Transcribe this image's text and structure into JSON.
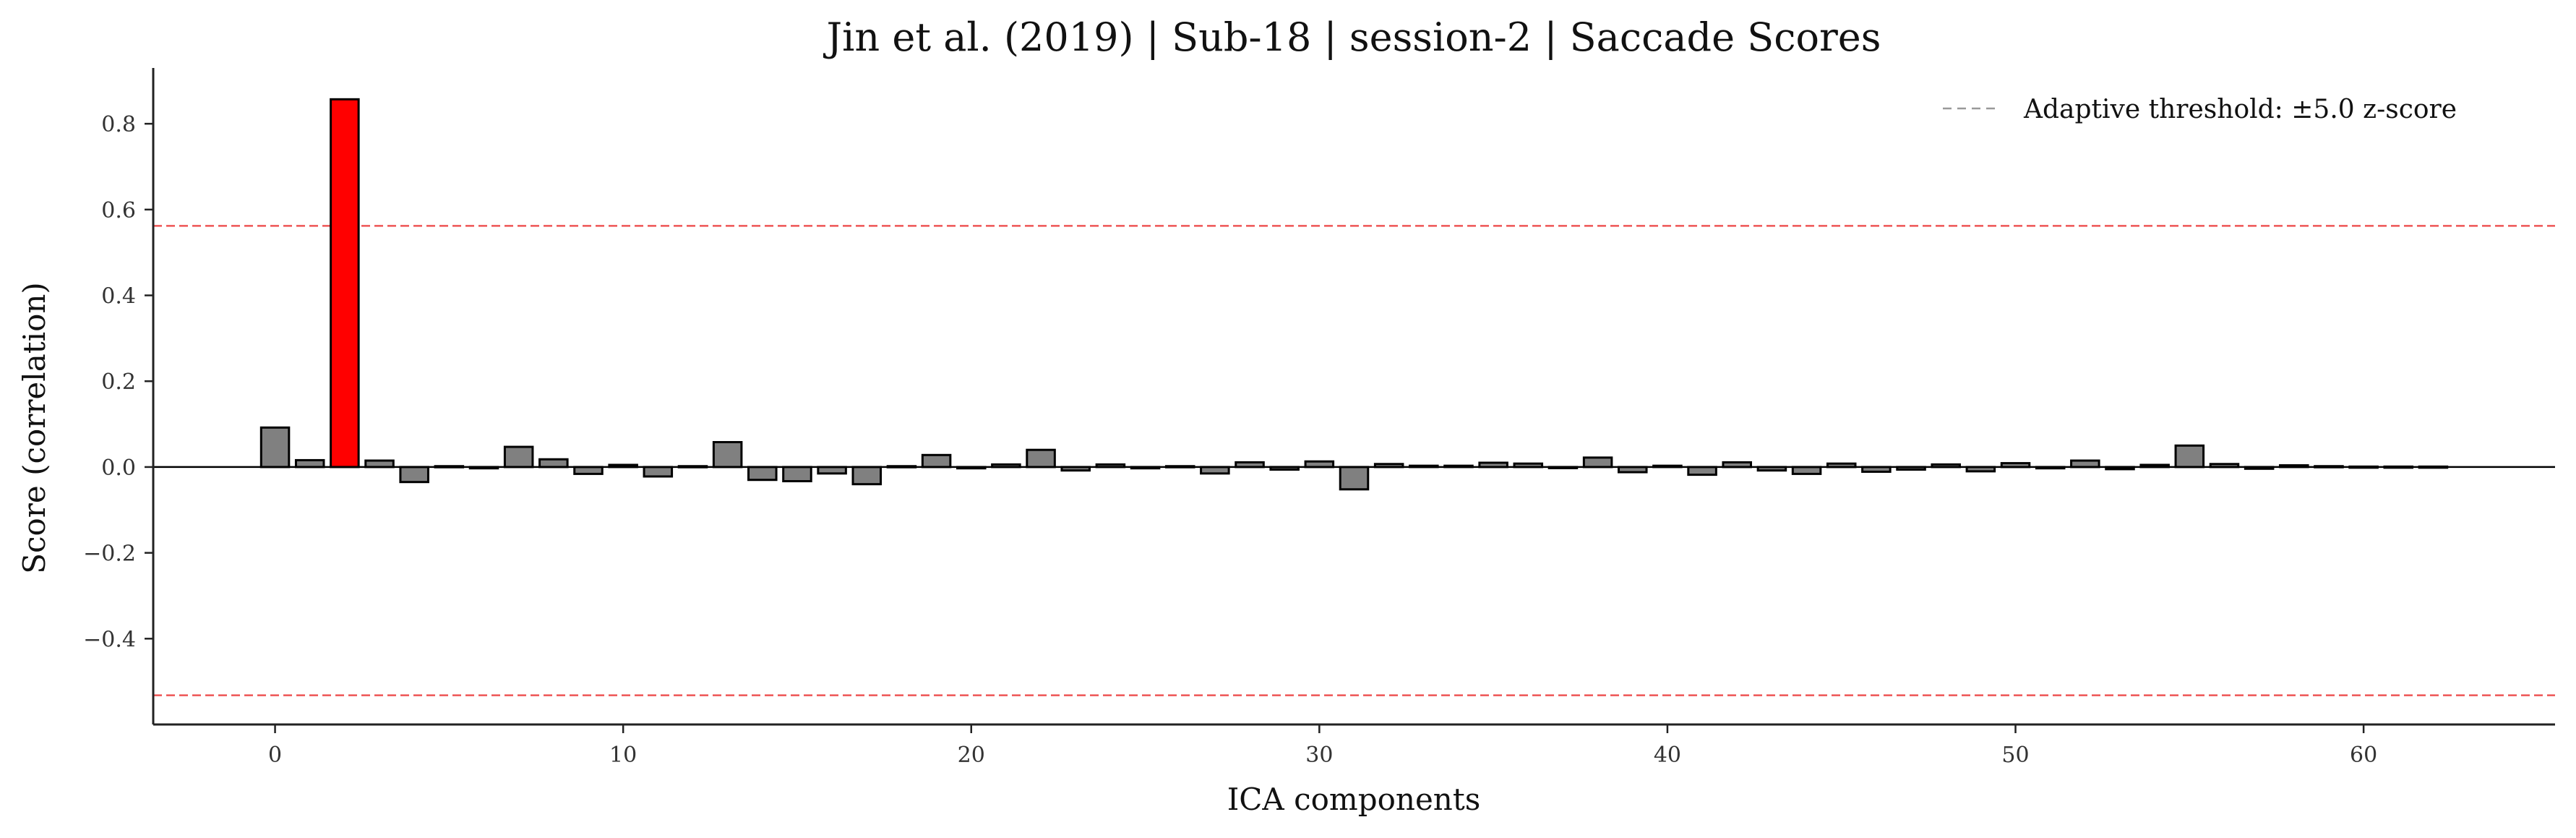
{
  "chart_data": {
    "type": "bar",
    "title": "Jin et al. (2019) | Sub-18 | session-2 | Saccade Scores",
    "xlabel": "ICA components",
    "ylabel": "Score (correlation)",
    "xlim": [
      -3.5,
      65.5
    ],
    "ylim": [
      -0.6,
      0.93
    ],
    "xticks": [
      0,
      10,
      20,
      30,
      40,
      50,
      60
    ],
    "yticks": [
      -0.4,
      -0.2,
      0.0,
      0.2,
      0.4,
      0.6,
      0.8
    ],
    "ytick_labels": [
      "−0.4",
      "−0.2",
      "0.0",
      "0.2",
      "0.4",
      "0.6",
      "0.8"
    ],
    "grid": false,
    "legend": {
      "position": "top-right",
      "label": "Adaptive threshold: ±5.0 z-score"
    },
    "thresholds": [
      0.562,
      -0.532
    ],
    "flagged_components": [
      2
    ],
    "x": [
      0,
      1,
      2,
      3,
      4,
      5,
      6,
      7,
      8,
      9,
      10,
      11,
      12,
      13,
      14,
      15,
      16,
      17,
      18,
      19,
      20,
      21,
      22,
      23,
      24,
      25,
      26,
      27,
      28,
      29,
      30,
      31,
      32,
      33,
      34,
      35,
      36,
      37,
      38,
      39,
      40,
      41,
      42,
      43,
      44,
      45,
      46,
      47,
      48,
      49,
      50,
      51,
      52,
      53,
      54,
      55,
      56,
      57,
      58,
      59,
      60,
      61,
      62
    ],
    "values": [
      0.092,
      0.016,
      0.857,
      0.015,
      -0.035,
      0.002,
      -0.003,
      0.047,
      0.018,
      -0.016,
      0.005,
      -0.022,
      0.002,
      0.058,
      -0.03,
      -0.033,
      -0.015,
      -0.04,
      0.002,
      0.028,
      -0.003,
      0.006,
      0.04,
      -0.008,
      0.006,
      -0.003,
      0.002,
      -0.015,
      0.011,
      -0.006,
      0.013,
      -0.052,
      0.007,
      0.003,
      0.003,
      0.01,
      0.008,
      -0.002,
      0.022,
      -0.012,
      0.003,
      -0.018,
      0.011,
      -0.008,
      -0.016,
      0.008,
      -0.011,
      -0.006,
      0.006,
      -0.01,
      0.009,
      -0.003,
      0.015,
      -0.005,
      0.005,
      0.05,
      0.007,
      -0.004,
      0.004,
      0.002,
      0.001,
      0.001,
      0.001
    ]
  },
  "colors": {
    "bar_default": "#808080",
    "bar_flagged": "#ff0000",
    "bar_edge": "#000000",
    "threshold_line": "#ee5555",
    "legend_line": "#999999",
    "axis": "#222222"
  }
}
